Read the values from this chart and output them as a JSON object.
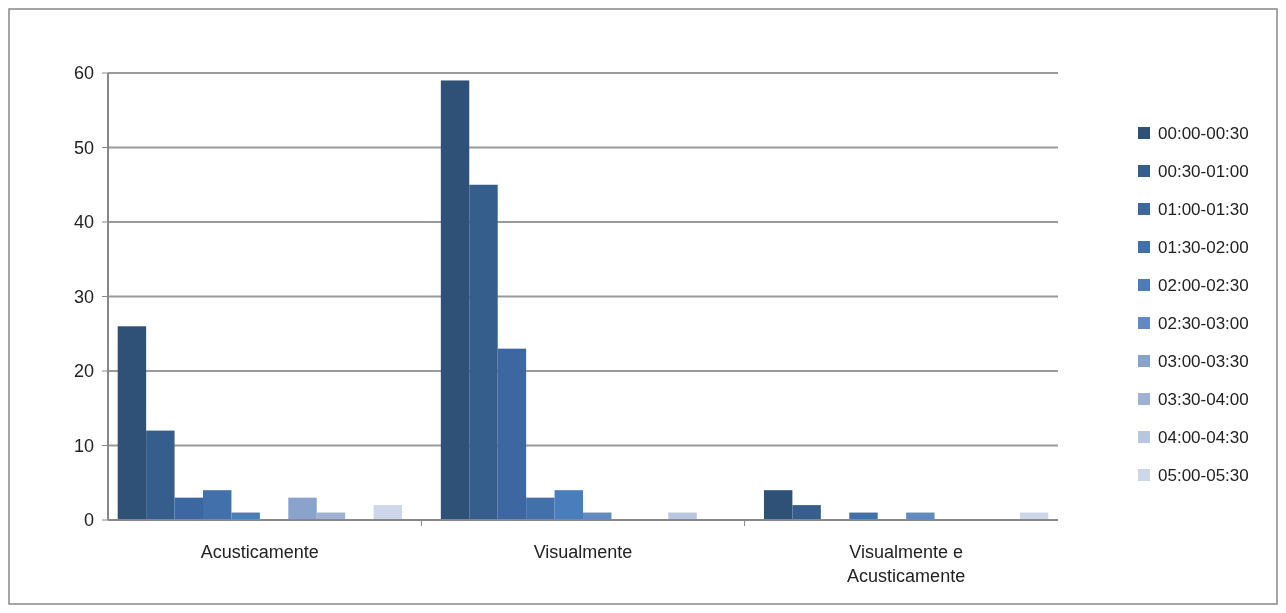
{
  "chart_data": {
    "type": "bar",
    "categories": [
      "Acusticamente",
      "Visualmente",
      "Visualmente e Acusticamente"
    ],
    "series": [
      {
        "name": "00:00-00:30",
        "color": "#2f5077",
        "values": [
          26,
          59,
          4
        ]
      },
      {
        "name": "00:30-01:00",
        "color": "#355e8c",
        "values": [
          12,
          45,
          2
        ]
      },
      {
        "name": "01:00-01:30",
        "color": "#3d67a0",
        "values": [
          3,
          23,
          0
        ]
      },
      {
        "name": "01:30-02:00",
        "color": "#4170aa",
        "values": [
          4,
          3,
          1
        ]
      },
      {
        "name": "02:00-02:30",
        "color": "#4a7dbb",
        "values": [
          1,
          4,
          0
        ]
      },
      {
        "name": "02:30-03:00",
        "color": "#6189c2",
        "values": [
          0,
          1,
          1
        ]
      },
      {
        "name": "03:00-03:30",
        "color": "#8aa3cc",
        "values": [
          3,
          0,
          0
        ]
      },
      {
        "name": "03:30-04:00",
        "color": "#9fb2d4",
        "values": [
          1,
          0,
          0
        ]
      },
      {
        "name": "04:00-04:30",
        "color": "#b8c6e0",
        "values": [
          0,
          1,
          0
        ]
      },
      {
        "name": "05:00-05:30",
        "color": "#ced7ea",
        "values": [
          2,
          0,
          1
        ]
      }
    ],
    "ylim": [
      0,
      60
    ],
    "yticks": [
      0,
      10,
      20,
      30,
      40,
      50,
      60
    ],
    "grid": "y",
    "legend": "right"
  }
}
